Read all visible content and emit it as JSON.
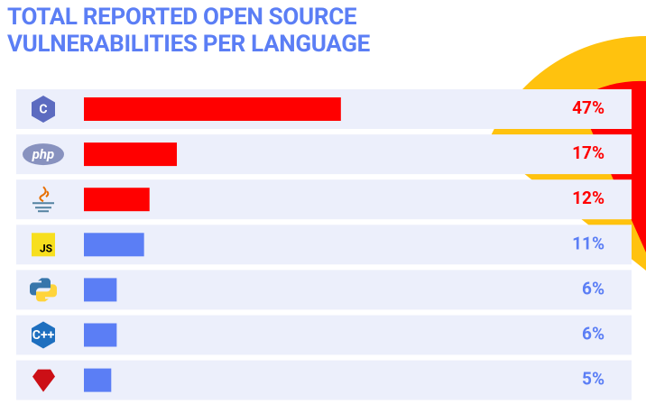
{
  "chart_data": {
    "type": "bar",
    "orientation": "horizontal",
    "title": "TOTAL REPORTED OPEN SOURCE VULNERABILITIES PER LANGUAGE",
    "categories": [
      "C",
      "php",
      null,
      "JS",
      null,
      "C++",
      null
    ],
    "values": [
      47,
      17,
      12,
      11,
      6,
      6,
      5
    ],
    "value_labels": [
      "47%",
      "17%",
      "12%",
      "11%",
      "6%",
      "6%",
      "5%"
    ],
    "colors": [
      "#ff0000",
      "#ff0000",
      "#ff0000",
      "#5b7ef5",
      "#5b7ef5",
      "#5b7ef5",
      "#5b7ef5"
    ],
    "xlim": [
      0,
      100
    ]
  }
}
